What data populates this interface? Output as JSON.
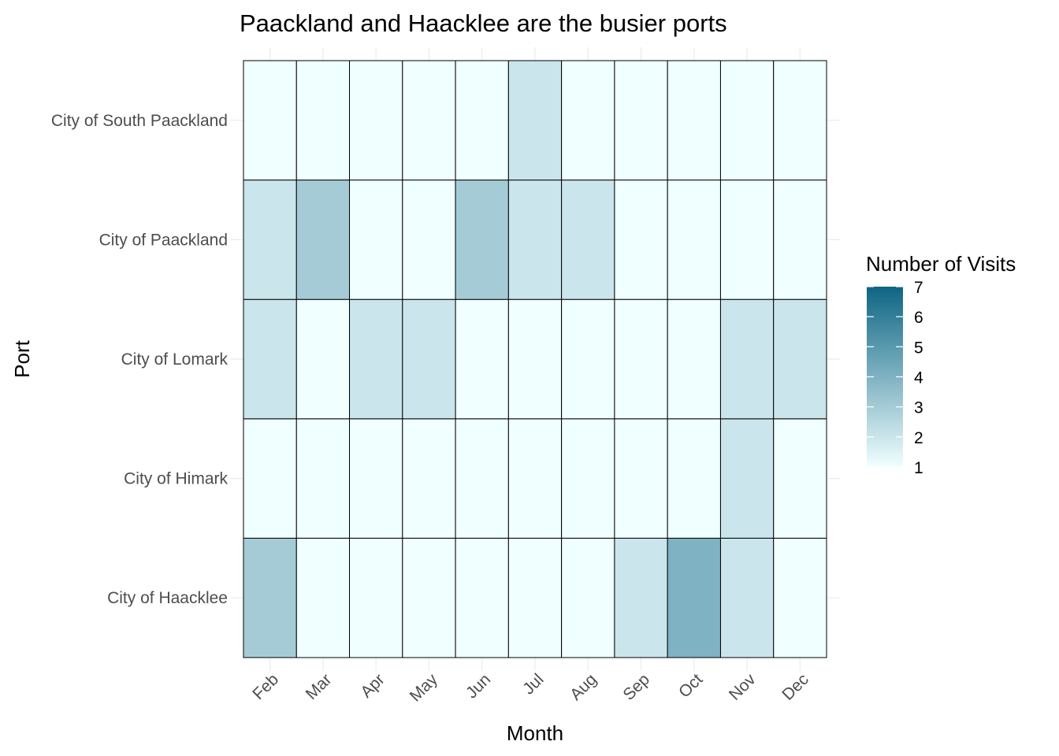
{
  "chart_data": {
    "type": "heatmap",
    "title": "Paackland and Haacklee are the busier ports",
    "xlabel": "Month",
    "ylabel": "Port",
    "x_categories": [
      "Feb",
      "Mar",
      "Apr",
      "May",
      "Jun",
      "Jul",
      "Aug",
      "Sep",
      "Oct",
      "Nov",
      "Dec"
    ],
    "y_categories": [
      "City of Haacklee",
      "City of Himark",
      "City of Lomark",
      "City of Paackland",
      "City of South Paackland"
    ],
    "values": [
      [
        3,
        1,
        1,
        1,
        1,
        1,
        1,
        2,
        4,
        2,
        1
      ],
      [
        1,
        1,
        1,
        1,
        1,
        1,
        1,
        1,
        1,
        2,
        1
      ],
      [
        2,
        1,
        2,
        2,
        1,
        1,
        1,
        1,
        1,
        2,
        2
      ],
      [
        2,
        3,
        1,
        1,
        3,
        2,
        2,
        1,
        1,
        1,
        1
      ],
      [
        1,
        1,
        1,
        1,
        1,
        2,
        1,
        1,
        1,
        1,
        1
      ]
    ],
    "legend": {
      "title": "Number of Visits",
      "ticks": [
        1,
        2,
        3,
        4,
        5,
        6,
        7
      ],
      "range": [
        1,
        7
      ],
      "low_color": "#f0ffff",
      "high_color": "#0e6584",
      "position": "right"
    },
    "grid": true
  }
}
